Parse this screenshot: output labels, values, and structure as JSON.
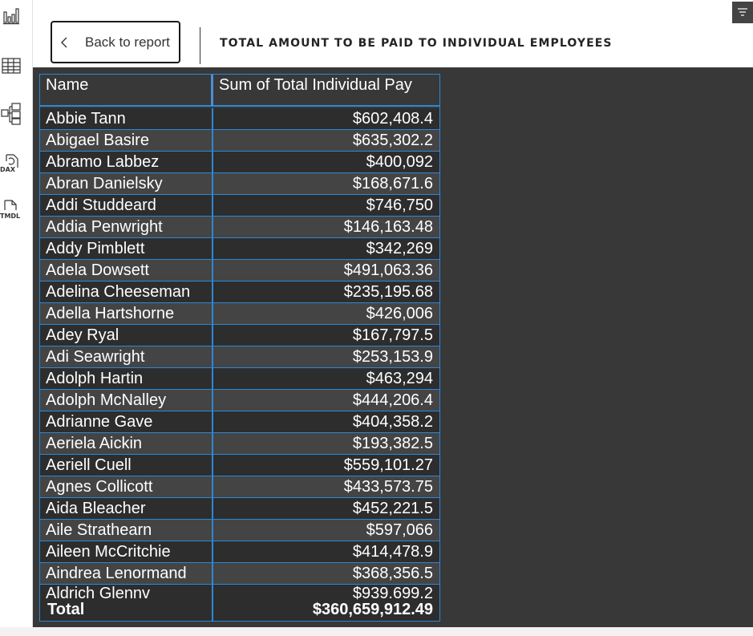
{
  "header": {
    "back_label": "Back to report",
    "title": "TOTAL AMOUNT TO BE PAID TO INDIVIDUAL EMPLOYEES"
  },
  "rail": {
    "icons": [
      "report-view-icon",
      "table-view-icon",
      "model-view-icon",
      "dax-query-view-icon",
      "tmdl-view-icon"
    ],
    "dax_label": "DAX",
    "tmdl_label": "TMDL"
  },
  "table": {
    "columns": [
      "Name",
      "Sum of Total Individual Pay"
    ],
    "rows": [
      {
        "name": "Abbie Tann",
        "pay": "$602,408.4"
      },
      {
        "name": "Abigael Basire",
        "pay": "$635,302.2"
      },
      {
        "name": "Abramo Labbez",
        "pay": "$400,092"
      },
      {
        "name": "Abran Danielsky",
        "pay": "$168,671.6"
      },
      {
        "name": "Addi Studdeard",
        "pay": "$746,750"
      },
      {
        "name": "Addia Penwright",
        "pay": "$146,163.48"
      },
      {
        "name": "Addy Pimblett",
        "pay": "$342,269"
      },
      {
        "name": "Adela Dowsett",
        "pay": "$491,063.36"
      },
      {
        "name": "Adelina Cheeseman",
        "pay": "$235,195.68"
      },
      {
        "name": "Adella Hartshorne",
        "pay": "$426,006"
      },
      {
        "name": "Adey Ryal",
        "pay": "$167,797.5"
      },
      {
        "name": "Adi Seawright",
        "pay": "$253,153.9"
      },
      {
        "name": "Adolph Hartin",
        "pay": "$463,294"
      },
      {
        "name": "Adolph McNalley",
        "pay": "$444,206.4"
      },
      {
        "name": "Adrianne Gave",
        "pay": "$404,358.2"
      },
      {
        "name": "Aeriela Aickin",
        "pay": "$193,382.5"
      },
      {
        "name": "Aeriell Cuell",
        "pay": "$559,101.27"
      },
      {
        "name": "Agnes Collicott",
        "pay": "$433,573.75"
      },
      {
        "name": "Aida Bleacher",
        "pay": "$452,221.5"
      },
      {
        "name": "Aile Strathearn",
        "pay": "$597,066"
      },
      {
        "name": "Aileen McCritchie",
        "pay": "$414,478.9"
      },
      {
        "name": "Aindrea Lenormand",
        "pay": "$368,356.5"
      }
    ],
    "partial_row": {
      "name": "Aldrich Glennv",
      "pay": "$939.699.2"
    },
    "total": {
      "label": "Total",
      "value": "$360,659,912.49"
    }
  },
  "colors": {
    "canvas": "#383838",
    "grid_line": "#2b88d8",
    "text": "#ffffff",
    "filter_button": "#444444"
  }
}
